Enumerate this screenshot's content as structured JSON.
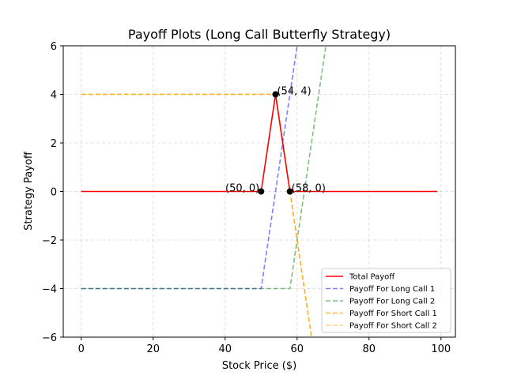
{
  "chart_data": {
    "type": "line",
    "title": "Payoff Plots (Long Call Butterfly Strategy)",
    "xlabel": "Stock Price ($)",
    "ylabel": "Strategy Payoff",
    "xlim": [
      -5,
      104
    ],
    "ylim": [
      -6,
      6
    ],
    "xticks": [
      0,
      20,
      40,
      60,
      80,
      100
    ],
    "yticks": [
      -6,
      -4,
      -2,
      0,
      2,
      4,
      6
    ],
    "grid": true,
    "legend_position": "bottom-right",
    "series": [
      {
        "name": "Total Payoff",
        "color": "#ff0000",
        "style": "solid",
        "opacity": 1,
        "x": [
          0,
          50,
          54,
          58,
          99
        ],
        "y": [
          0,
          0,
          4,
          0,
          0
        ]
      },
      {
        "name": "Payoff For Long Call 1",
        "color": "#0000ff",
        "style": "dashed",
        "opacity": 0.5,
        "x": [
          0,
          50,
          60.75
        ],
        "y": [
          -4,
          -4,
          6.75
        ]
      },
      {
        "name": "Payoff For Long Call 2",
        "color": "#008000",
        "style": "dashed",
        "opacity": 0.5,
        "x": [
          0,
          58,
          68.75
        ],
        "y": [
          -4,
          -4,
          6.75
        ]
      },
      {
        "name": "Payoff For Short Call 1",
        "color": "#ffa500",
        "style": "dashed",
        "opacity": 0.75,
        "x": [
          0,
          54,
          64.5
        ],
        "y": [
          4,
          4,
          -6.5
        ]
      },
      {
        "name": "Payoff For Short Call 2",
        "color": "#ffa500",
        "style": "dashed",
        "opacity": 0.5,
        "x": [
          0,
          54,
          64.5
        ],
        "y": [
          4,
          4,
          -6.5
        ]
      }
    ],
    "points": [
      {
        "x": 50,
        "y": 0,
        "label": "(50, 0)",
        "anchor": "left"
      },
      {
        "x": 54,
        "y": 4,
        "label": "(54, 4)",
        "anchor": "right"
      },
      {
        "x": 58,
        "y": 0,
        "label": "(58, 0)",
        "anchor": "right"
      }
    ]
  }
}
